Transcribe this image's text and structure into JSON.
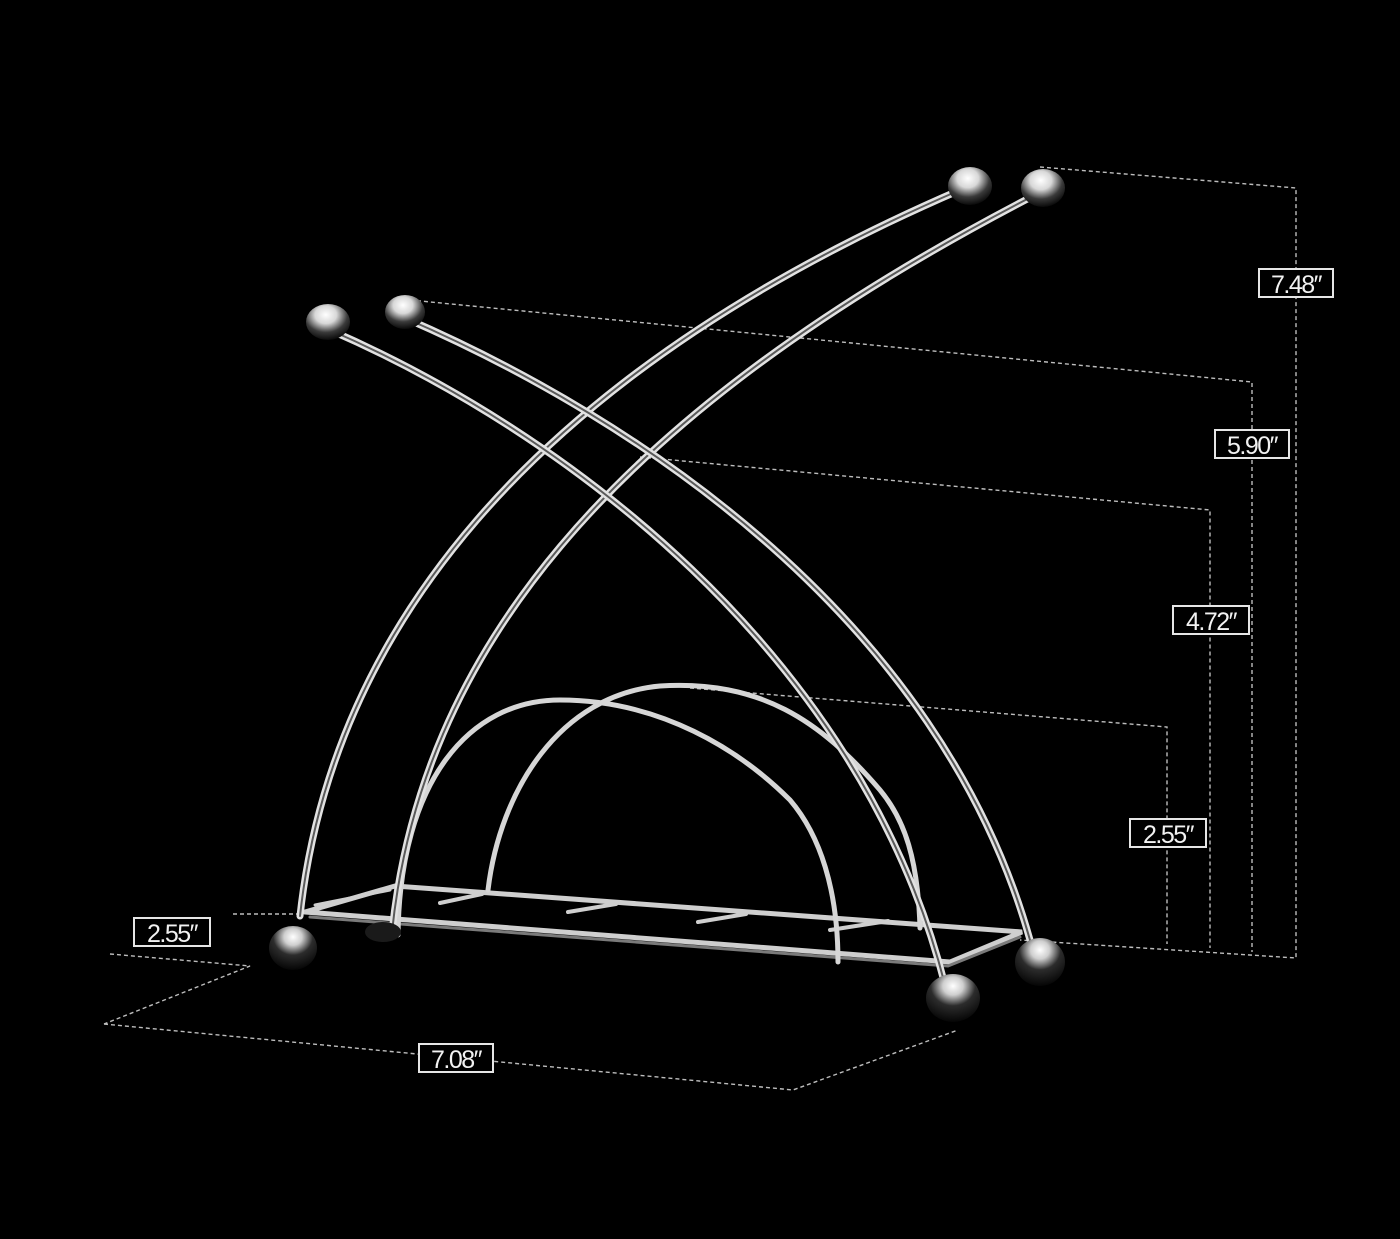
{
  "product": {
    "name": "curved wire napkin holder",
    "finish_color": "#d9d9d9",
    "background_color": "#000000"
  },
  "dimensions": {
    "overall_height": "7.48″",
    "arm_height": "5.90″",
    "crossing_height": "4.72″",
    "inner_arch_height": "2.55″",
    "depth": "2.55″",
    "width": "7.08″"
  },
  "dimension_line_style": "dashed",
  "dimension_line_color": "#bdbdbd"
}
